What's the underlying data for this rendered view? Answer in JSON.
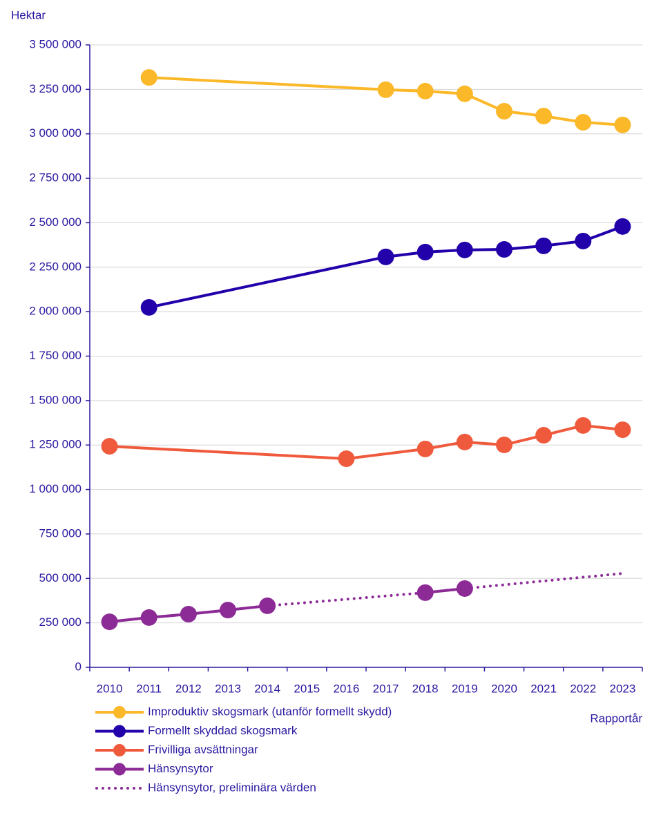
{
  "chart_data": {
    "type": "line",
    "y_label": "Hektar",
    "x_label": "Rapportår",
    "xlim": [
      2009.5,
      2023.5
    ],
    "xticks": [
      2010,
      2011,
      2012,
      2013,
      2014,
      2015,
      2016,
      2017,
      2018,
      2019,
      2020,
      2021,
      2022,
      2023
    ],
    "ylim": [
      0,
      3500000
    ],
    "yticks": [
      0,
      {
        "value": 250000,
        "label": "250 000"
      },
      {
        "value": 500000,
        "label": "500 000"
      },
      {
        "value": 750000,
        "label": "750 000"
      },
      {
        "value": 1000000,
        "label": "1 000 000"
      },
      {
        "value": 1250000,
        "label": "1 250 000"
      },
      {
        "value": 1500000,
        "label": "1 500 000"
      },
      {
        "value": 1750000,
        "label": "1 750 000"
      },
      {
        "value": 2000000,
        "label": "2 000 000"
      },
      {
        "value": 2250000,
        "label": "2 250 000"
      },
      {
        "value": 2500000,
        "label": "2 500 000"
      },
      {
        "value": 2750000,
        "label": "2 750 000"
      },
      {
        "value": 3000000,
        "label": "3 000 000"
      },
      {
        "value": 3250000,
        "label": "3 250 000"
      },
      {
        "value": 3500000,
        "label": "3 500 000"
      }
    ],
    "grid": true,
    "legend": "bottom-left",
    "series": [
      {
        "name": "Improduktiv skogsmark (utanför formellt skydd)",
        "color": "#fbb829",
        "marker": true,
        "dash": "solid",
        "x": [
          2011,
          2017,
          2018,
          2019,
          2020,
          2021,
          2022,
          2023
        ],
        "values": [
          3317000,
          3248000,
          3240000,
          3225000,
          3127000,
          3100000,
          3065000,
          3050000
        ]
      },
      {
        "name": "Formellt skyddad skogsmark",
        "color": "#2200aa",
        "marker": true,
        "dash": "solid",
        "x": [
          2011,
          2017,
          2018,
          2019,
          2020,
          2021,
          2022,
          2023
        ],
        "values": [
          2024000,
          2308000,
          2335000,
          2347000,
          2350000,
          2370000,
          2397000,
          2479000
        ]
      },
      {
        "name": "Frivilliga avsättningar",
        "color": "#f05a3c",
        "marker": true,
        "dash": "solid",
        "x": [
          2010,
          2016,
          2018,
          2019,
          2020,
          2021,
          2022,
          2023
        ],
        "values": [
          1243000,
          1173000,
          1228000,
          1267000,
          1251000,
          1305000,
          1360000,
          1336000
        ]
      },
      {
        "name": "Hänsynsytor",
        "color": "#8c2a96",
        "marker": true,
        "dash": "solid",
        "x": [
          2010,
          2011,
          2012,
          2013,
          2014,
          2015,
          2016,
          2017,
          2018,
          2019
        ],
        "values": [
          256000,
          280000,
          299000,
          322000,
          346000,
          null,
          null,
          null,
          420000,
          443000
        ]
      },
      {
        "name": "Hänsynsytor, preliminära värden",
        "color": "#8c2a96",
        "marker": false,
        "dash": "dotted",
        "x": [
          2014,
          2018,
          2019,
          2023
        ],
        "values": [
          346000,
          420000,
          443000,
          528000
        ]
      }
    ]
  }
}
